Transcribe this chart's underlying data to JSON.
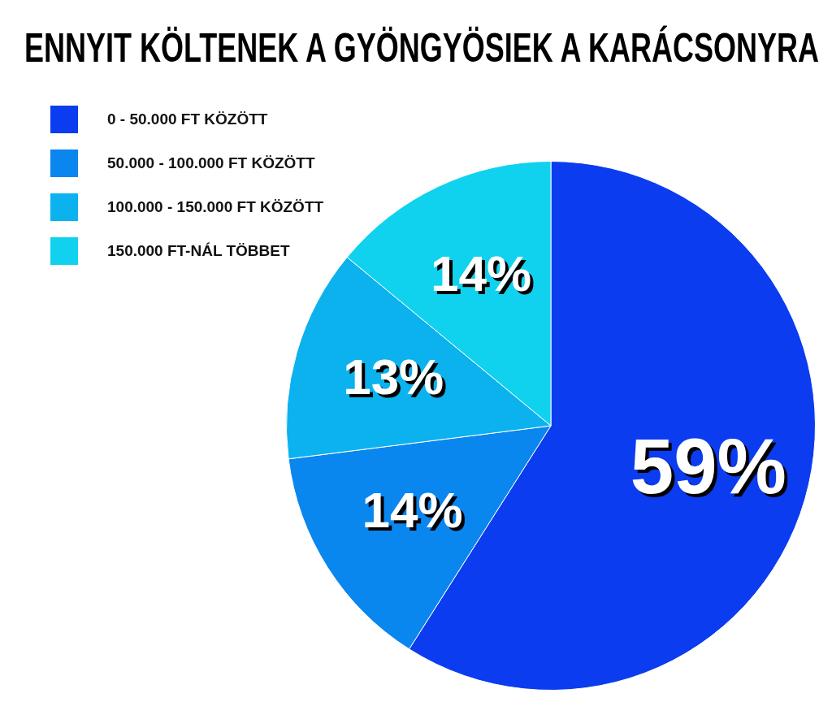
{
  "chart_data": {
    "type": "pie",
    "title": "ENNYIT KÖLTENEK A GYÖNGYÖSIEK A KARÁCSONYRA",
    "categories": [
      "0 - 50.000 FT KÖZÖTT",
      "50.000 - 100.000 FT KÖZÖTT",
      "100.000 - 150.000 FT KÖZÖTT",
      "150.000 FT-NÁL TÖBBET"
    ],
    "values": [
      59,
      14,
      13,
      14
    ],
    "colors": [
      "#0b3cf0",
      "#0a86ef",
      "#0bb2ee",
      "#10d2ee"
    ],
    "value_labels": [
      "59%",
      "14%",
      "13%",
      "14%"
    ],
    "legend": "top left"
  }
}
